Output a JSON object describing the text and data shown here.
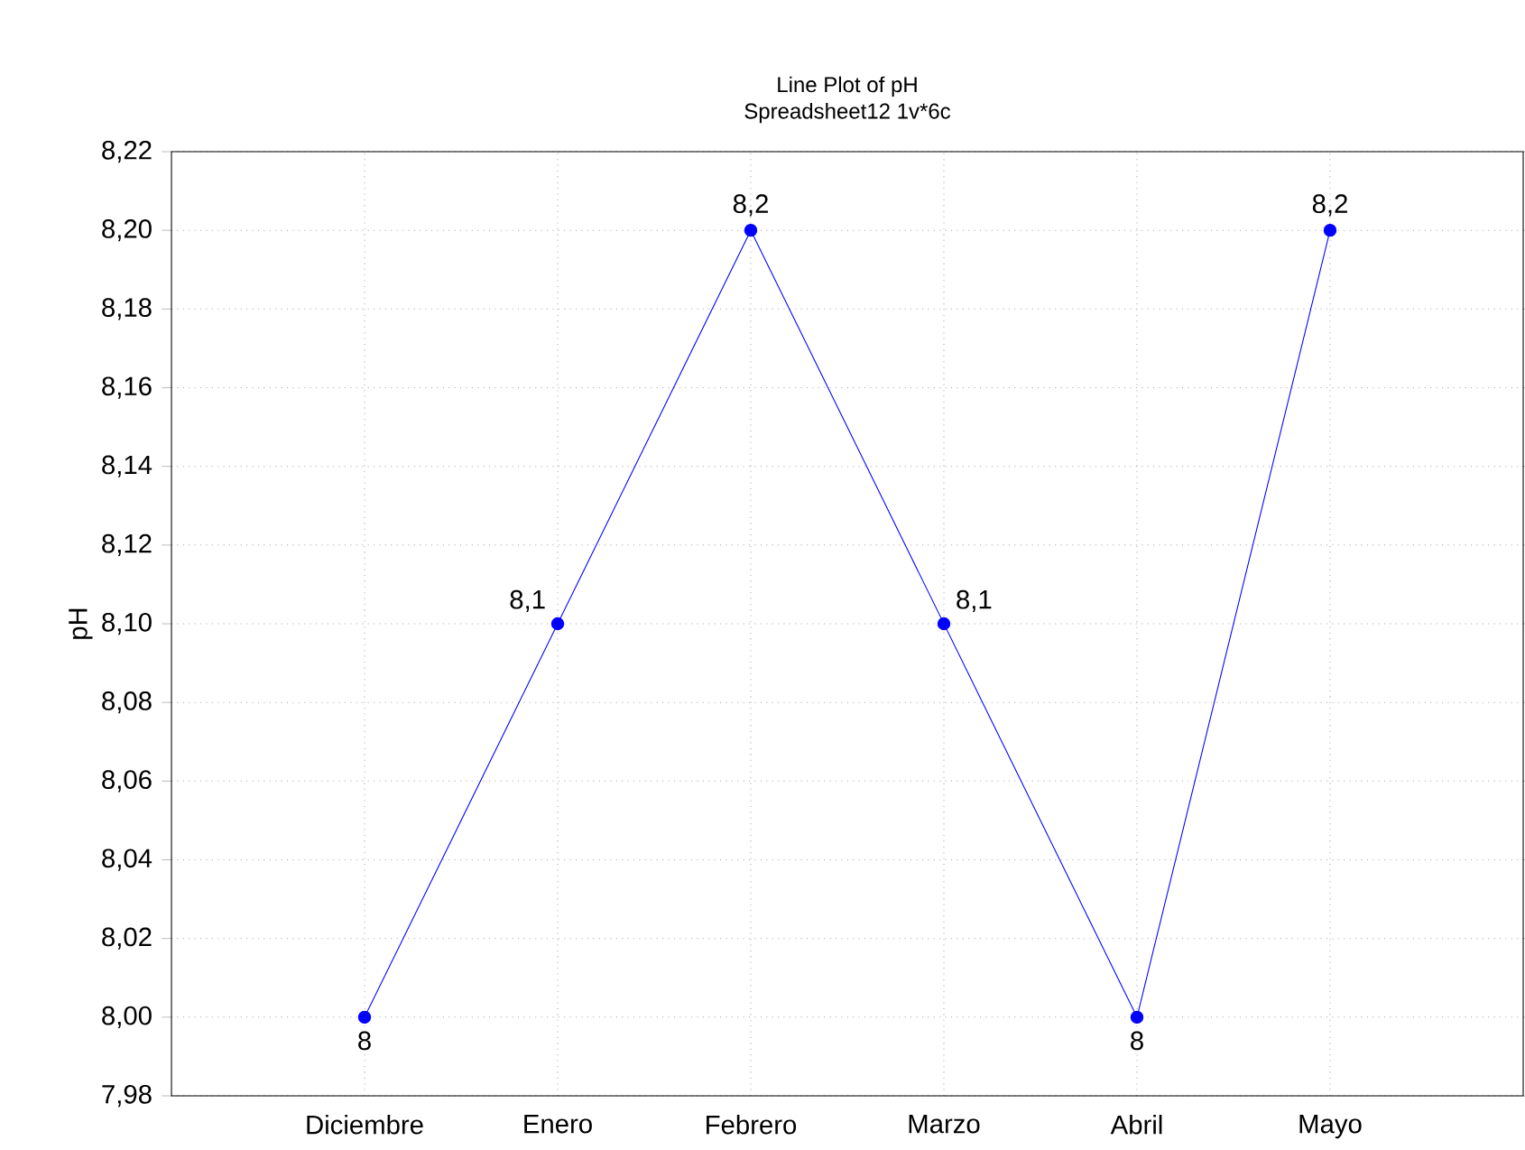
{
  "chart_data": {
    "type": "line",
    "title": "Line Plot of pH",
    "subtitle": "Spreadsheet12 1v*6c",
    "ylabel": "pH",
    "categories": [
      "Diciembre",
      "Enero",
      "Febrero",
      "Marzo",
      "Abril",
      "Mayo"
    ],
    "series": [
      {
        "color": "#0000ff",
        "values": [
          8.0,
          8.1,
          8.2,
          8.1,
          8.0,
          8.2
        ],
        "value_labels": [
          "8",
          "8,1",
          "8,2",
          "8,1",
          "8",
          "8,2"
        ]
      }
    ],
    "ylim": [
      7.98,
      8.22
    ],
    "yticks": [
      {
        "value": 7.98,
        "label": "7,98"
      },
      {
        "value": 8.0,
        "label": "8,00"
      },
      {
        "value": 8.02,
        "label": "8,02"
      },
      {
        "value": 8.04,
        "label": "8,04"
      },
      {
        "value": 8.06,
        "label": "8,06"
      },
      {
        "value": 8.08,
        "label": "8,08"
      },
      {
        "value": 8.1,
        "label": "8,10"
      },
      {
        "value": 8.12,
        "label": "8,12"
      },
      {
        "value": 8.14,
        "label": "8,14"
      },
      {
        "value": 8.16,
        "label": "8,16"
      },
      {
        "value": 8.18,
        "label": "8,18"
      },
      {
        "value": 8.2,
        "label": "8,20"
      },
      {
        "value": 8.22,
        "label": "8,22"
      }
    ],
    "grid": true,
    "marker": "circle",
    "line_style": "solid"
  }
}
